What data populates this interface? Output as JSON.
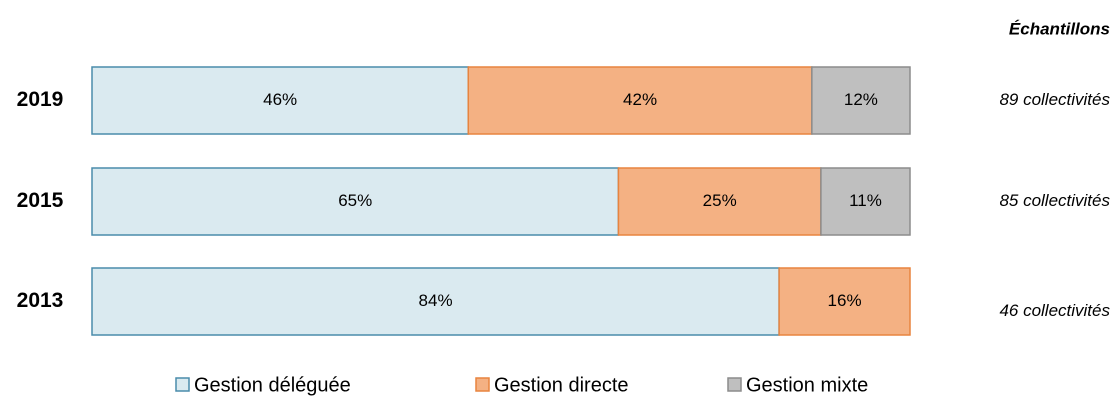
{
  "chart_data": {
    "type": "stacked-bar-100",
    "orientation": "horizontal",
    "categories": [
      "2019",
      "2015",
      "2013"
    ],
    "series": [
      {
        "name": "Gestion déléguée",
        "color": "#daeaf0",
        "edge": "#4a8cab",
        "values": [
          46,
          65,
          84
        ],
        "value_labels": [
          "46%",
          "65%",
          "84%"
        ]
      },
      {
        "name": "Gestion directe",
        "color": "#f4b183",
        "edge": "#e8843f",
        "values": [
          42,
          25,
          16
        ],
        "value_labels": [
          "42%",
          "25%",
          "16%"
        ]
      },
      {
        "name": "Gestion mixte",
        "color": "#bfbfbf",
        "edge": "#8c8c8c",
        "values": [
          12,
          11,
          null
        ],
        "value_labels": [
          "12%",
          "11%",
          null
        ]
      }
    ],
    "annotations_title": "Échantillons",
    "annotations": [
      "89 collectivités",
      "85 collectivités",
      "46 collectivités"
    ],
    "legend": "bottom"
  }
}
